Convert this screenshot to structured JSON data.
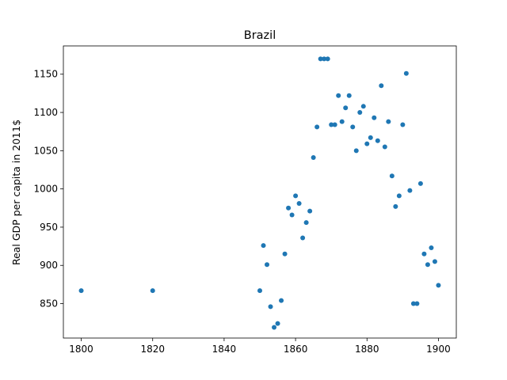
{
  "chart_data": {
    "type": "scatter",
    "title": "Brazil",
    "xlabel": "",
    "ylabel": "Real GDP per capita in 2011$",
    "xlim": [
      1795,
      1905
    ],
    "ylim": [
      805,
      1187
    ],
    "xticks": [
      1800,
      1820,
      1840,
      1860,
      1880,
      1900
    ],
    "yticks": [
      850,
      900,
      950,
      1000,
      1050,
      1100,
      1150
    ],
    "marker_color": "#1f77b4",
    "grid": false,
    "series": [
      {
        "x": [
          1800,
          1820,
          1850,
          1851,
          1852,
          1853,
          1854,
          1855,
          1856,
          1857,
          1858,
          1859,
          1860,
          1861,
          1862,
          1863,
          1864,
          1865,
          1866,
          1867,
          1868,
          1869,
          1870,
          1871,
          1872,
          1873,
          1874,
          1875,
          1876,
          1877,
          1878,
          1879,
          1880,
          1881,
          1882,
          1883,
          1884,
          1885,
          1886,
          1887,
          1888,
          1889,
          1890,
          1891,
          1892,
          1893,
          1894,
          1895,
          1896,
          1897,
          1898,
          1899,
          1900
        ],
        "y": [
          867,
          867,
          867,
          926,
          901,
          846,
          819,
          824,
          854,
          915,
          975,
          966,
          991,
          981,
          936,
          956,
          971,
          1041,
          1081,
          1170,
          1170,
          1170,
          1084,
          1084,
          1122,
          1088,
          1106,
          1122,
          1081,
          1050,
          1100,
          1108,
          1059,
          1067,
          1093,
          1063,
          1135,
          1055,
          1088,
          1017,
          977,
          991,
          1084,
          1151,
          998,
          850,
          850,
          1007,
          915,
          901,
          923,
          905,
          874
        ]
      }
    ]
  }
}
